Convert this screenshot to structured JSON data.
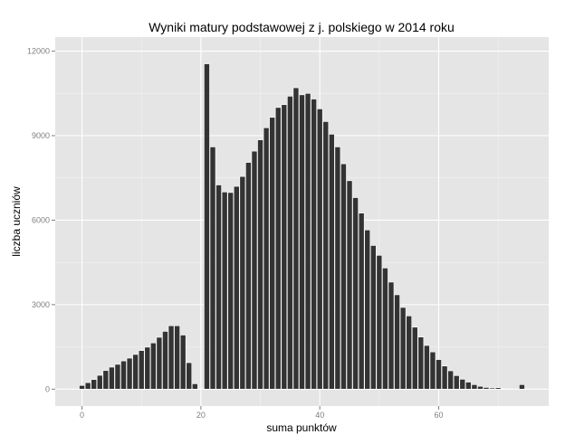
{
  "chart_data": {
    "type": "bar",
    "title": "Wyniki matury podstawowej z j. polskiego w 2014 roku",
    "xlabel": "suma punktów",
    "ylabel": "liczba uczniów",
    "xlim": [
      -4.5,
      78.5
    ],
    "ylim": [
      -600,
      12500
    ],
    "x_ticks": [
      0,
      20,
      40,
      60
    ],
    "y_ticks": [
      0,
      3000,
      6000,
      9000,
      12000
    ],
    "grid": true,
    "colors": {
      "panel": "#e5e5e5",
      "grid_major": "#ffffff",
      "grid_minor": "#f2f2f2",
      "bar": "#333333",
      "bar_outline": "#ffffff"
    },
    "x": [
      0,
      1,
      2,
      3,
      4,
      5,
      6,
      7,
      8,
      9,
      10,
      11,
      12,
      13,
      14,
      15,
      16,
      17,
      18,
      19,
      21,
      22,
      23,
      24,
      25,
      26,
      27,
      28,
      29,
      30,
      31,
      32,
      33,
      34,
      35,
      36,
      37,
      38,
      39,
      40,
      41,
      42,
      43,
      44,
      45,
      46,
      47,
      48,
      49,
      50,
      51,
      52,
      53,
      54,
      55,
      56,
      57,
      58,
      59,
      60,
      61,
      62,
      63,
      64,
      65,
      66,
      67,
      68,
      69,
      70,
      71,
      74
    ],
    "values": [
      130,
      230,
      340,
      490,
      660,
      780,
      880,
      1000,
      1100,
      1230,
      1370,
      1490,
      1640,
      1840,
      2050,
      2250,
      2250,
      1920,
      940,
      190,
      11550,
      8600,
      7250,
      7000,
      6980,
      7200,
      7550,
      8050,
      8450,
      8850,
      9280,
      9650,
      10000,
      10100,
      10400,
      10700,
      10450,
      10500,
      10300,
      9950,
      9500,
      9050,
      8600,
      8000,
      7400,
      6800,
      6250,
      5650,
      5100,
      4750,
      4300,
      3800,
      3350,
      2900,
      2600,
      2200,
      1850,
      1550,
      1320,
      1050,
      820,
      650,
      480,
      350,
      250,
      160,
      100,
      60,
      40,
      50,
      15,
      160
    ]
  }
}
